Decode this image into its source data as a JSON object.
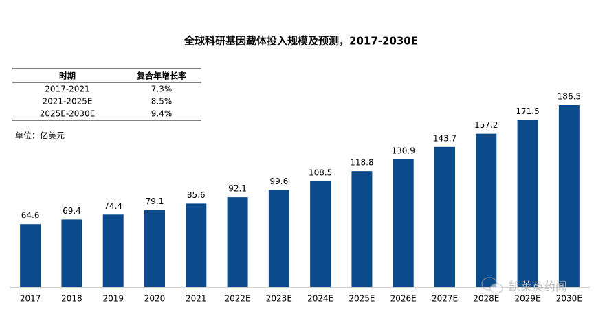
{
  "chart_data": {
    "type": "bar",
    "title": "全球科研基因载体投入规模及预测，2017-2030E",
    "unit_label": "单位：亿美元",
    "categories": [
      "2017",
      "2018",
      "2019",
      "2020",
      "2021",
      "2022E",
      "2023E",
      "2024E",
      "2025E",
      "2026E",
      "2027E",
      "2028E",
      "2029E",
      "2030E"
    ],
    "values": [
      64.6,
      69.4,
      74.4,
      79.1,
      85.6,
      92.1,
      99.6,
      108.5,
      118.8,
      130.9,
      143.7,
      157.2,
      171.5,
      186.5
    ],
    "color": "#0b4a8b"
  },
  "table": {
    "header": [
      "时期",
      "复合年增长率"
    ],
    "rows": [
      [
        "2017-2021",
        "7.3%"
      ],
      [
        "2021-2025E",
        "8.5%"
      ],
      [
        "2025E-2030E",
        "9.4%"
      ]
    ]
  },
  "watermark": "凯莱英药闻"
}
